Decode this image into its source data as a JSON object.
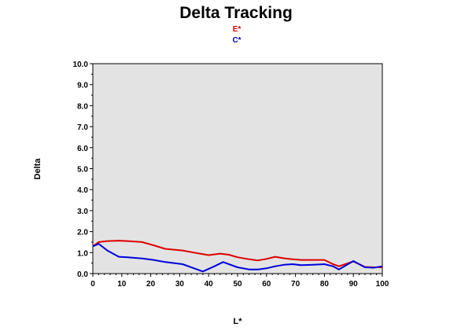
{
  "chart_data": {
    "type": "line",
    "title": "Delta Tracking",
    "xlabel": "L*",
    "ylabel": "Delta",
    "xlim": [
      0,
      100
    ],
    "ylim": [
      0,
      10
    ],
    "x_ticks": [
      0,
      10,
      20,
      30,
      40,
      50,
      60,
      70,
      80,
      90,
      100
    ],
    "y_ticks": [
      "0.0",
      "1.0",
      "2.0",
      "3.0",
      "4.0",
      "5.0",
      "6.0",
      "7.0",
      "8.0",
      "9.0",
      "10.0"
    ],
    "legend_position": "top-center",
    "grid": false,
    "plot_background": "#e3e3e3",
    "series": [
      {
        "name": "E*",
        "color": "#dd0000",
        "x": [
          0,
          2,
          5,
          9,
          12,
          17,
          21,
          25,
          31,
          35,
          40,
          44,
          47,
          50,
          54,
          57,
          60,
          63,
          66,
          69,
          72,
          76,
          80,
          83,
          85,
          90,
          94,
          97,
          100
        ],
        "y": [
          1.3,
          1.5,
          1.55,
          1.57,
          1.55,
          1.5,
          1.35,
          1.18,
          1.1,
          1.0,
          0.88,
          0.95,
          0.9,
          0.78,
          0.68,
          0.63,
          0.7,
          0.8,
          0.73,
          0.68,
          0.65,
          0.65,
          0.65,
          0.45,
          0.35,
          0.58,
          0.32,
          0.3,
          0.3
        ]
      },
      {
        "name": "C*",
        "color": "#0000dd",
        "x": [
          0,
          2,
          5,
          9,
          12,
          17,
          21,
          25,
          31,
          35,
          38,
          42,
          45,
          50,
          54,
          57,
          60,
          63,
          66,
          69,
          72,
          76,
          80,
          83,
          85,
          90,
          94,
          97,
          100
        ],
        "y": [
          1.3,
          1.42,
          1.1,
          0.8,
          0.78,
          0.72,
          0.65,
          0.55,
          0.45,
          0.25,
          0.1,
          0.35,
          0.55,
          0.3,
          0.2,
          0.2,
          0.25,
          0.35,
          0.42,
          0.45,
          0.4,
          0.42,
          0.45,
          0.35,
          0.2,
          0.6,
          0.3,
          0.28,
          0.35
        ]
      }
    ]
  }
}
